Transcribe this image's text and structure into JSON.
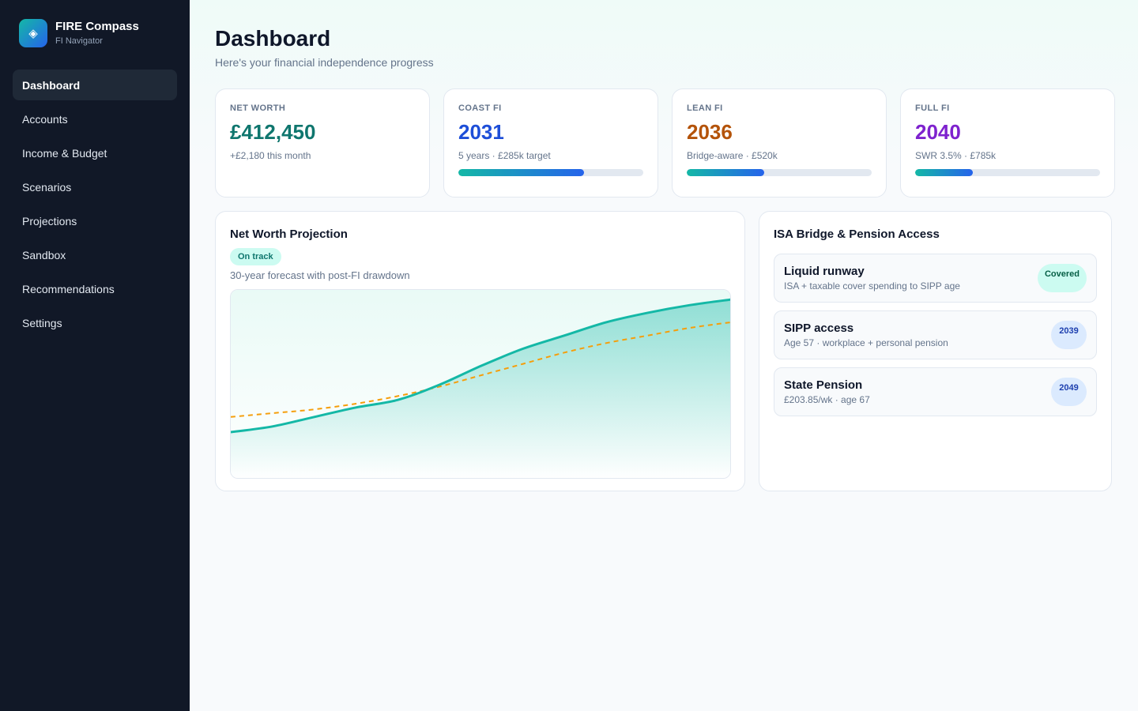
{
  "brand": {
    "name": "FIRE Compass",
    "subtitle": "FI Navigator",
    "logo_icon": "diamond-icon"
  },
  "nav": {
    "items": [
      {
        "label": "Dashboard",
        "active": true
      },
      {
        "label": "Accounts"
      },
      {
        "label": "Income & Budget"
      },
      {
        "label": "Scenarios"
      },
      {
        "label": "Projections"
      },
      {
        "label": "Sandbox"
      },
      {
        "label": "Recommendations"
      },
      {
        "label": "Settings"
      }
    ]
  },
  "header": {
    "title": "Dashboard",
    "subtitle": "Here's your financial independence progress"
  },
  "stats": [
    {
      "label": "NET WORTH",
      "value": "£412,450",
      "note": "+£2,180 this month",
      "color": "#0f766e"
    },
    {
      "label": "COAST FI",
      "value": "2031",
      "note": "5 years · £285k target",
      "color": "#1d4ed8",
      "progress": 0.68
    },
    {
      "label": "LEAN FI",
      "value": "2036",
      "note": "Bridge-aware · £520k",
      "color": "#b45309",
      "progress": 0.42
    },
    {
      "label": "FULL FI",
      "value": "2040",
      "note": "SWR 3.5% · £785k",
      "color": "#7e22ce",
      "progress": 0.31
    }
  ],
  "projection": {
    "title": "Net Worth Projection",
    "badge": "On track",
    "description": "30-year forecast with post-FI drawdown"
  },
  "isa": {
    "title": "ISA Bridge & Pension Access",
    "items": [
      {
        "title": "Liquid runway",
        "desc": "ISA + taxable cover spending to SIPP age",
        "badge": "Covered",
        "badge_color": "#ccfbf1"
      },
      {
        "title": "SIPP access",
        "desc": "Age 57 · workplace + personal pension",
        "badge": "2039",
        "badge_color": "#dbeafe"
      },
      {
        "title": "State Pension",
        "desc": "£203.85/wk · age 67",
        "badge": "2049",
        "badge_color": "#dbeafe"
      }
    ]
  },
  "colors": {
    "sidebar_bg": "#111827",
    "accent_teal": "#14b8a6",
    "accent_blue": "#2563eb",
    "target_line": "#f59e0b"
  },
  "chart_data": {
    "type": "area",
    "title": "",
    "xlabel": "",
    "ylabel": "",
    "x": [
      0,
      1,
      2,
      3,
      4,
      5,
      6,
      7,
      8,
      9,
      10,
      11,
      12
    ],
    "ylim": [
      0,
      100
    ],
    "grid": false,
    "series": [
      {
        "values": [
          25,
          28,
          33,
          38,
          42,
          50,
          60,
          69,
          76,
          83,
          88,
          92,
          95
        ],
        "style": "solid-area",
        "color": "#14b8a6"
      },
      {
        "values": [
          33,
          35,
          37,
          40,
          44,
          49,
          55,
          61,
          67,
          72,
          76,
          80,
          83
        ],
        "style": "dashed",
        "color": "#f59e0b"
      }
    ]
  }
}
